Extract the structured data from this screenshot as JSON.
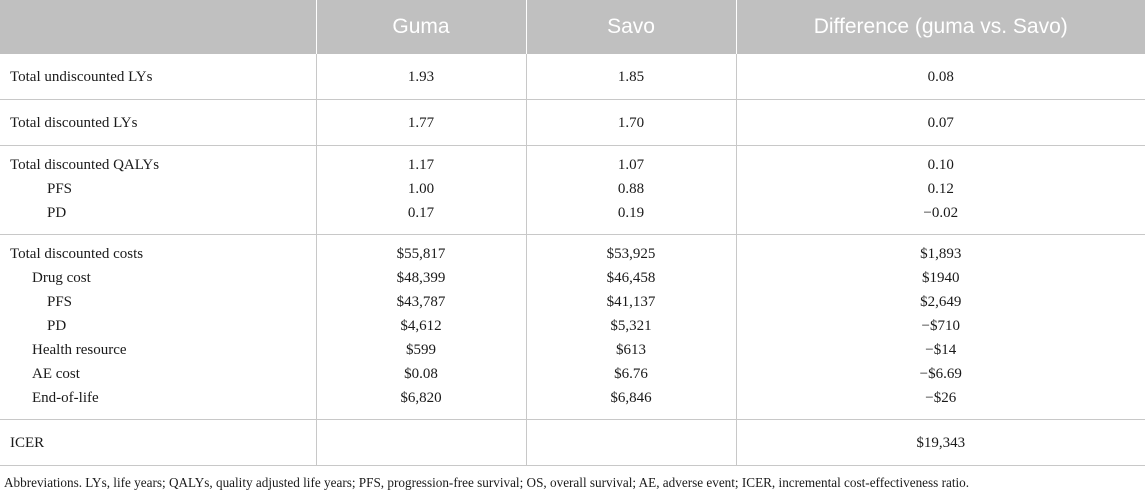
{
  "table": {
    "headers": [
      "",
      "Guma",
      "Savo",
      "Difference (guma vs. Savo)"
    ],
    "rows": [
      {
        "label": "Total undiscounted LYs",
        "guma": "1.93",
        "savo": "1.85",
        "diff": "0.08"
      },
      {
        "label": "Total discounted LYs",
        "guma": "1.77",
        "savo": "1.70",
        "diff": "0.07"
      },
      {
        "label": "Total discounted QALYs",
        "guma": "1.17",
        "savo": "1.07",
        "diff": "0.10"
      },
      {
        "label": "PFS",
        "guma": "1.00",
        "savo": "0.88",
        "diff": "0.12"
      },
      {
        "label": "PD",
        "guma": "0.17",
        "savo": "0.19",
        "diff": "−0.02"
      },
      {
        "label": "Total discounted costs",
        "guma": "$55,817",
        "savo": "$53,925",
        "diff": "$1,893"
      },
      {
        "label": "Drug cost",
        "guma": "$48,399",
        "savo": "$46,458",
        "diff": "$1940"
      },
      {
        "label": "PFS",
        "guma": "$43,787",
        "savo": "$41,137",
        "diff": "$2,649"
      },
      {
        "label": "PD",
        "guma": "$4,612",
        "savo": "$5,321",
        "diff": "−$710"
      },
      {
        "label": "Health resource",
        "guma": "$599",
        "savo": "$613",
        "diff": "−$14"
      },
      {
        "label": "AE cost",
        "guma": "$0.08",
        "savo": "$6.76",
        "diff": "−$6.69"
      },
      {
        "label": "End-of-life",
        "guma": "$6,820",
        "savo": "$6,846",
        "diff": "−$26"
      },
      {
        "label": "ICER",
        "guma": "",
        "savo": "",
        "diff": "$19,343"
      }
    ]
  },
  "footnote": "Abbreviations. LYs, life years; QALYs, quality adjusted life years; PFS, progression-free survival; OS, overall survival; AE, adverse event; ICER, incremental cost-effectiveness ratio.",
  "colors": {
    "header_bg": "#c0c0c0",
    "header_text": "#ffffff",
    "rule": "#c8c8c8"
  }
}
